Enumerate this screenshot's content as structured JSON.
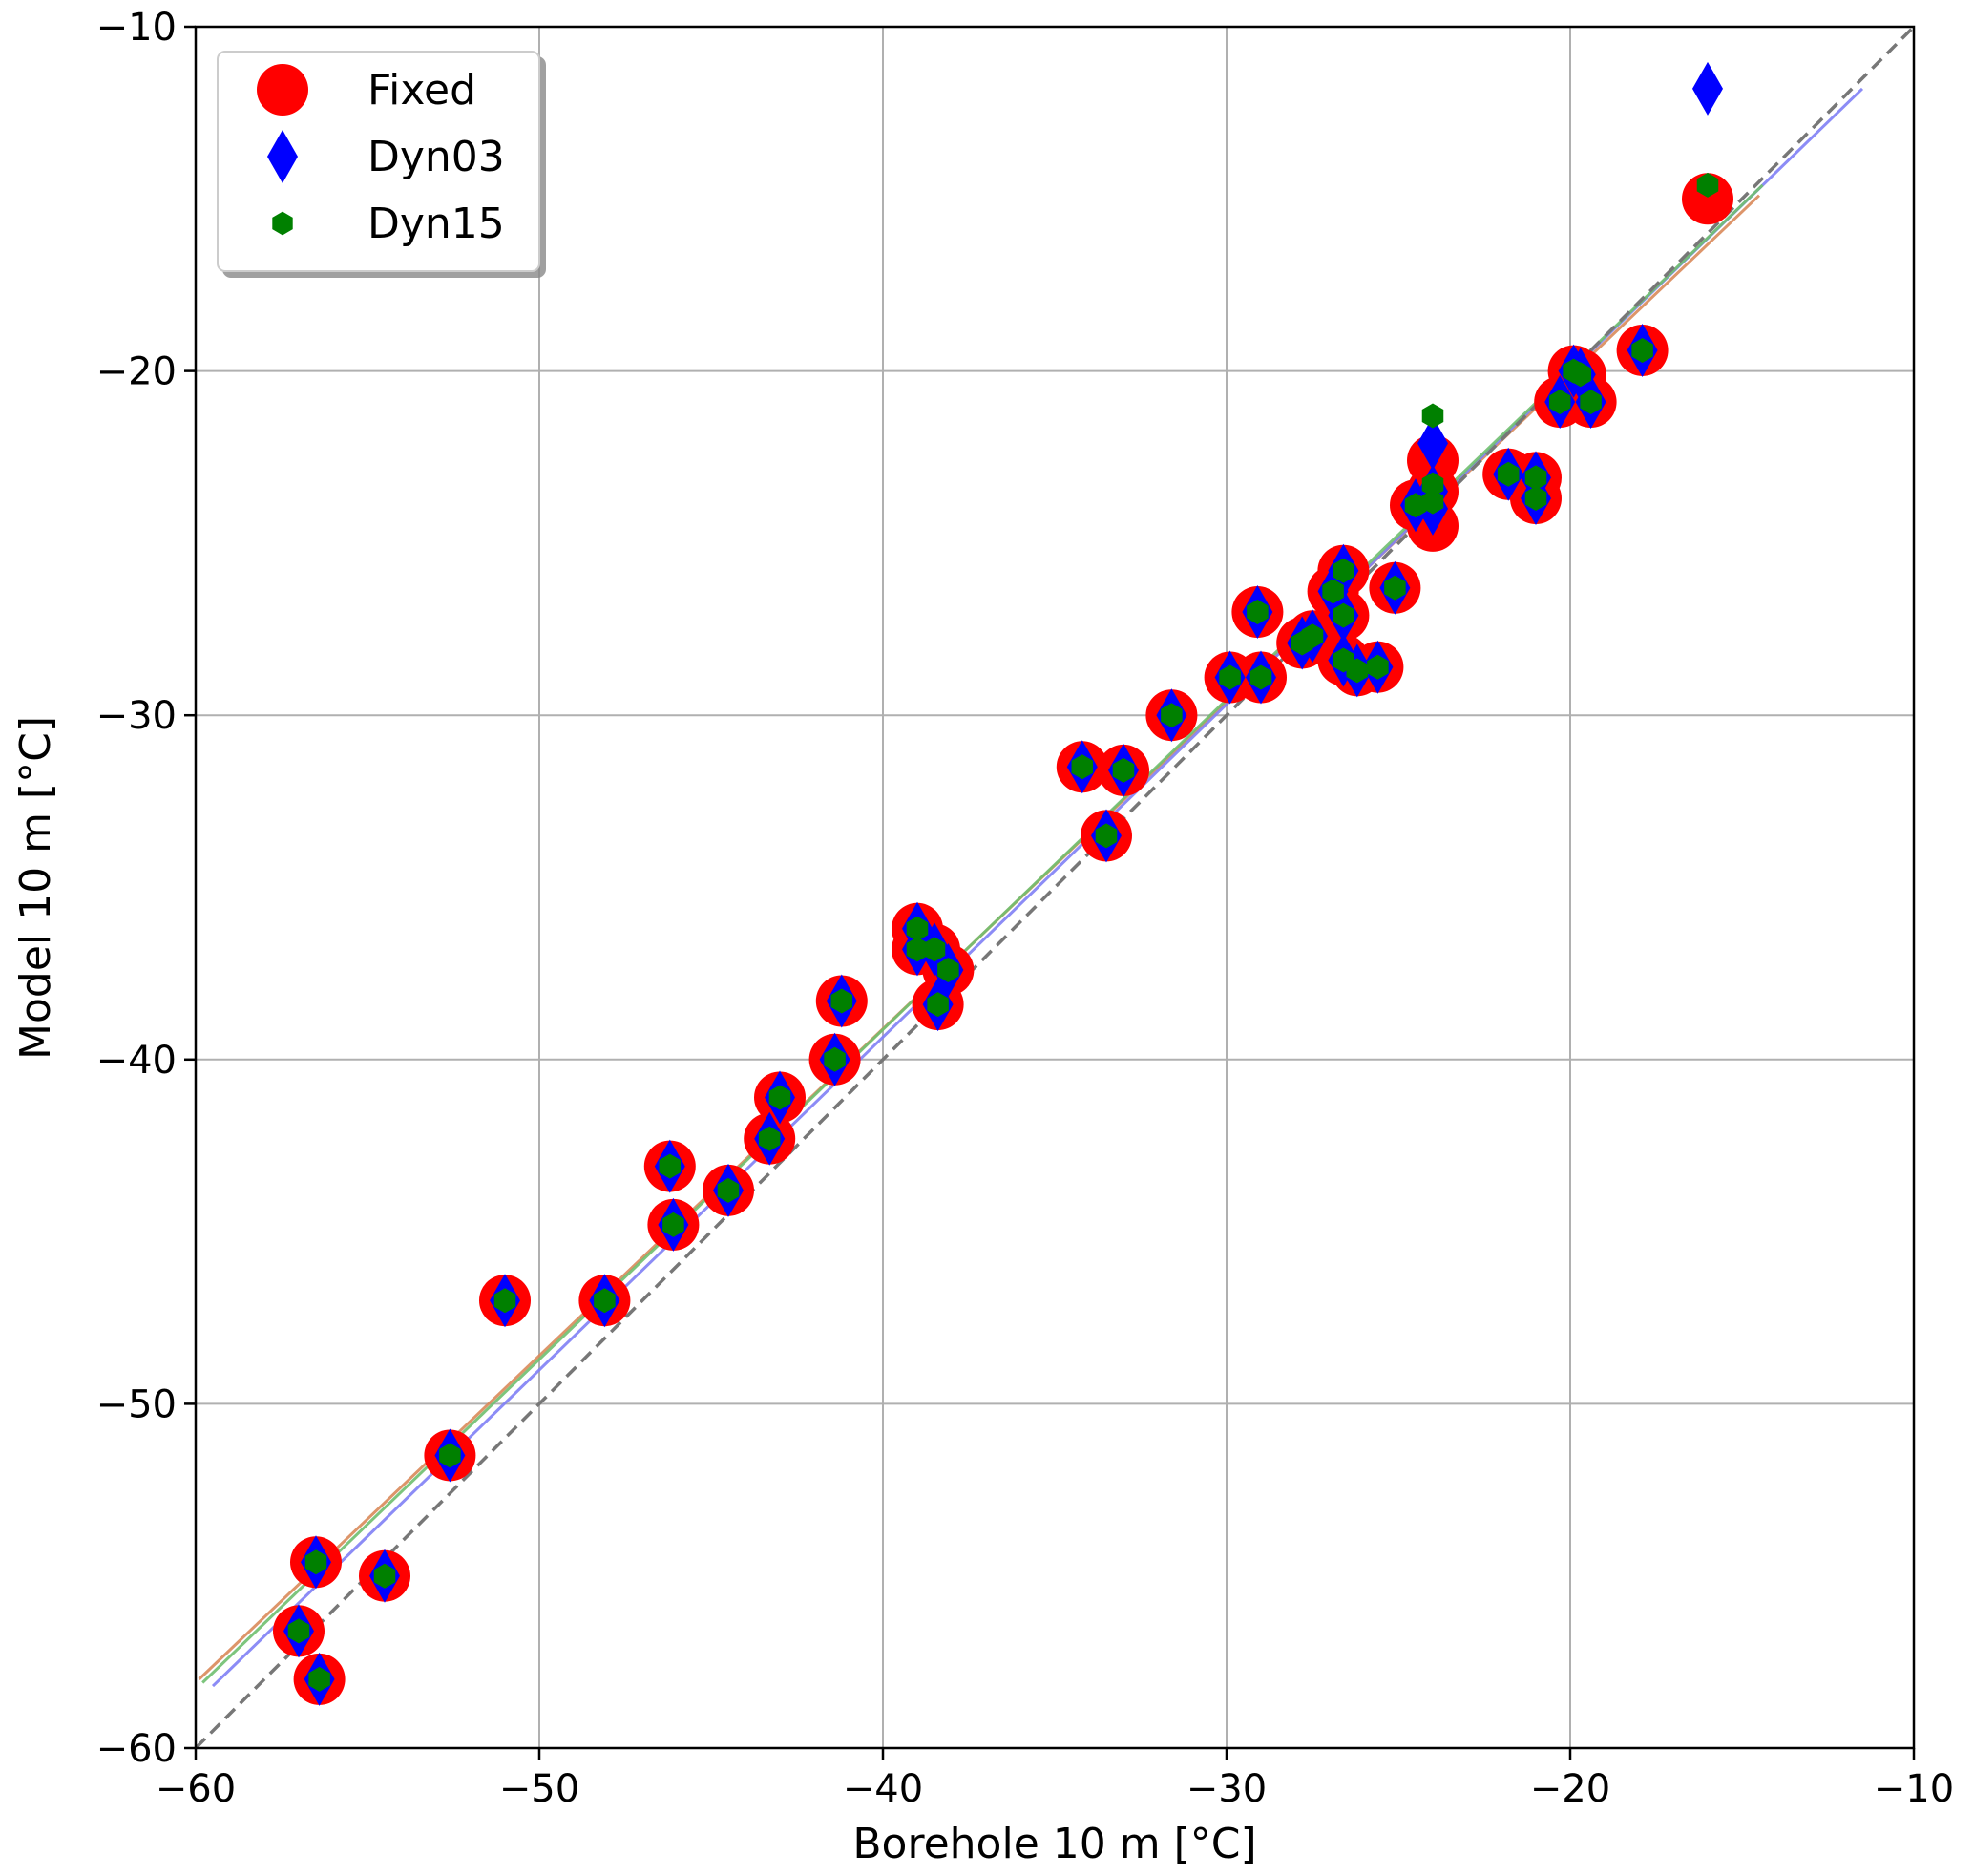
{
  "chart_data": {
    "type": "scatter",
    "title": "",
    "xlabel": "Borehole 10 m [°C]",
    "ylabel": "Model 10 m [°C]",
    "xlim": [
      -60,
      -10
    ],
    "ylim": [
      -60,
      -10
    ],
    "xticks": [
      -60,
      -50,
      -40,
      -30,
      -20,
      -10
    ],
    "yticks": [
      -60,
      -50,
      -40,
      -30,
      -20,
      -10
    ],
    "xtick_labels": [
      "−60",
      "−50",
      "−40",
      "−30",
      "−20",
      "−10"
    ],
    "ytick_labels": [
      "−60",
      "−50",
      "−40",
      "−30",
      "−20",
      "−10"
    ],
    "grid": true,
    "legend_position": "top-left",
    "one_to_one_line": {
      "style": "dashed",
      "color": "#777777",
      "from": [
        -60,
        -60
      ],
      "to": [
        -10,
        -10
      ]
    },
    "regression_lines": [
      {
        "series": "Fixed",
        "color": "#d98a5a",
        "from": [
          -59.9,
          -58.0
        ],
        "to": [
          -14.5,
          -14.9
        ]
      },
      {
        "series": "Dyn03",
        "color": "#7f7ff5",
        "from": [
          -59.5,
          -58.2
        ],
        "to": [
          -11.5,
          -11.8
        ]
      },
      {
        "series": "Dyn15",
        "color": "#6fbf6f",
        "from": [
          -59.8,
          -58.1
        ],
        "to": [
          -14.4,
          -14.6
        ]
      }
    ],
    "series": [
      {
        "name": "Fixed",
        "marker": "circle",
        "color": "#ff0000",
        "points": [
          [
            -57.0,
            -56.6
          ],
          [
            -56.4,
            -58.0
          ],
          [
            -56.5,
            -54.6
          ],
          [
            -54.5,
            -55.0
          ],
          [
            -52.6,
            -51.5
          ],
          [
            -51.0,
            -47.0
          ],
          [
            -48.1,
            -47.0
          ],
          [
            -46.2,
            -43.1
          ],
          [
            -46.1,
            -44.8
          ],
          [
            -44.5,
            -43.8
          ],
          [
            -43.3,
            -42.3
          ],
          [
            -43.0,
            -41.1
          ],
          [
            -41.4,
            -40.0
          ],
          [
            -41.2,
            -38.3
          ],
          [
            -39.0,
            -36.2
          ],
          [
            -39.0,
            -36.8
          ],
          [
            -38.5,
            -36.8
          ],
          [
            -38.4,
            -38.4
          ],
          [
            -38.1,
            -37.4
          ],
          [
            -34.2,
            -31.5
          ],
          [
            -33.0,
            -31.6
          ],
          [
            -33.5,
            -33.5
          ],
          [
            -31.6,
            -30.0
          ],
          [
            -29.9,
            -28.9
          ],
          [
            -29.1,
            -27.0
          ],
          [
            -29.0,
            -28.9
          ],
          [
            -27.8,
            -27.9
          ],
          [
            -27.5,
            -27.7
          ],
          [
            -26.9,
            -26.4
          ],
          [
            -26.6,
            -25.8
          ],
          [
            -26.6,
            -27.1
          ],
          [
            -26.6,
            -28.4
          ],
          [
            -26.2,
            -28.7
          ],
          [
            -25.6,
            -28.6
          ],
          [
            -25.1,
            -26.3
          ],
          [
            -24.5,
            -23.9
          ],
          [
            -24.0,
            -22.6
          ],
          [
            -24.0,
            -23.5
          ],
          [
            -24.0,
            -24.5
          ],
          [
            -21.8,
            -23.0
          ],
          [
            -21.0,
            -23.1
          ],
          [
            -21.0,
            -23.7
          ],
          [
            -20.3,
            -20.9
          ],
          [
            -19.9,
            -20.0
          ],
          [
            -19.7,
            -20.1
          ],
          [
            -19.4,
            -20.9
          ],
          [
            -17.9,
            -19.4
          ],
          [
            -16.0,
            -15.0
          ]
        ]
      },
      {
        "name": "Dyn03",
        "marker": "diamond",
        "color": "#0000ff",
        "points": [
          [
            -57.0,
            -56.6
          ],
          [
            -56.4,
            -58.0
          ],
          [
            -56.5,
            -54.6
          ],
          [
            -54.5,
            -55.0
          ],
          [
            -52.6,
            -51.5
          ],
          [
            -51.0,
            -47.0
          ],
          [
            -48.1,
            -47.0
          ],
          [
            -46.2,
            -43.1
          ],
          [
            -46.1,
            -44.8
          ],
          [
            -44.5,
            -43.8
          ],
          [
            -43.3,
            -42.3
          ],
          [
            -43.0,
            -41.1
          ],
          [
            -41.4,
            -40.0
          ],
          [
            -41.2,
            -38.3
          ],
          [
            -39.0,
            -36.2
          ],
          [
            -39.0,
            -36.8
          ],
          [
            -38.5,
            -36.8
          ],
          [
            -38.4,
            -38.4
          ],
          [
            -38.1,
            -37.4
          ],
          [
            -34.2,
            -31.5
          ],
          [
            -33.0,
            -31.6
          ],
          [
            -33.5,
            -33.5
          ],
          [
            -31.6,
            -30.0
          ],
          [
            -29.9,
            -28.9
          ],
          [
            -29.1,
            -27.0
          ],
          [
            -29.0,
            -28.9
          ],
          [
            -27.8,
            -27.9
          ],
          [
            -27.5,
            -27.7
          ],
          [
            -26.9,
            -26.4
          ],
          [
            -26.6,
            -25.8
          ],
          [
            -26.6,
            -27.1
          ],
          [
            -26.6,
            -28.4
          ],
          [
            -26.2,
            -28.7
          ],
          [
            -25.6,
            -28.6
          ],
          [
            -25.1,
            -26.3
          ],
          [
            -24.5,
            -23.9
          ],
          [
            -24.0,
            -22.1
          ],
          [
            -24.0,
            -23.5
          ],
          [
            -24.0,
            -24.0
          ],
          [
            -21.8,
            -23.0
          ],
          [
            -21.0,
            -23.1
          ],
          [
            -21.0,
            -23.7
          ],
          [
            -20.3,
            -20.9
          ],
          [
            -19.9,
            -20.0
          ],
          [
            -19.7,
            -20.1
          ],
          [
            -19.4,
            -20.9
          ],
          [
            -17.9,
            -19.4
          ],
          [
            -16.0,
            -11.8
          ]
        ]
      },
      {
        "name": "Dyn15",
        "marker": "hexagon",
        "color": "#008000",
        "points": [
          [
            -57.0,
            -56.6
          ],
          [
            -56.4,
            -58.0
          ],
          [
            -56.5,
            -54.6
          ],
          [
            -54.5,
            -55.0
          ],
          [
            -52.6,
            -51.5
          ],
          [
            -51.0,
            -47.0
          ],
          [
            -48.1,
            -47.0
          ],
          [
            -46.2,
            -43.1
          ],
          [
            -46.1,
            -44.8
          ],
          [
            -44.5,
            -43.8
          ],
          [
            -43.3,
            -42.3
          ],
          [
            -43.0,
            -41.1
          ],
          [
            -41.4,
            -40.0
          ],
          [
            -41.2,
            -38.3
          ],
          [
            -39.0,
            -36.2
          ],
          [
            -39.0,
            -36.8
          ],
          [
            -38.5,
            -36.8
          ],
          [
            -38.4,
            -38.4
          ],
          [
            -38.1,
            -37.4
          ],
          [
            -34.2,
            -31.5
          ],
          [
            -33.0,
            -31.6
          ],
          [
            -33.5,
            -33.5
          ],
          [
            -31.6,
            -30.0
          ],
          [
            -29.9,
            -28.9
          ],
          [
            -29.1,
            -27.0
          ],
          [
            -29.0,
            -28.9
          ],
          [
            -27.8,
            -27.9
          ],
          [
            -27.5,
            -27.7
          ],
          [
            -26.9,
            -26.4
          ],
          [
            -26.6,
            -25.8
          ],
          [
            -26.6,
            -27.1
          ],
          [
            -26.6,
            -28.4
          ],
          [
            -26.2,
            -28.7
          ],
          [
            -25.6,
            -28.6
          ],
          [
            -25.1,
            -26.3
          ],
          [
            -24.5,
            -23.9
          ],
          [
            -24.0,
            -21.3
          ],
          [
            -24.0,
            -23.3
          ],
          [
            -24.0,
            -23.8
          ],
          [
            -21.8,
            -23.0
          ],
          [
            -21.0,
            -23.1
          ],
          [
            -21.0,
            -23.7
          ],
          [
            -20.3,
            -20.9
          ],
          [
            -19.9,
            -20.0
          ],
          [
            -19.7,
            -20.1
          ],
          [
            -19.4,
            -20.9
          ],
          [
            -17.9,
            -19.4
          ],
          [
            -16.0,
            -14.6
          ]
        ]
      }
    ]
  }
}
